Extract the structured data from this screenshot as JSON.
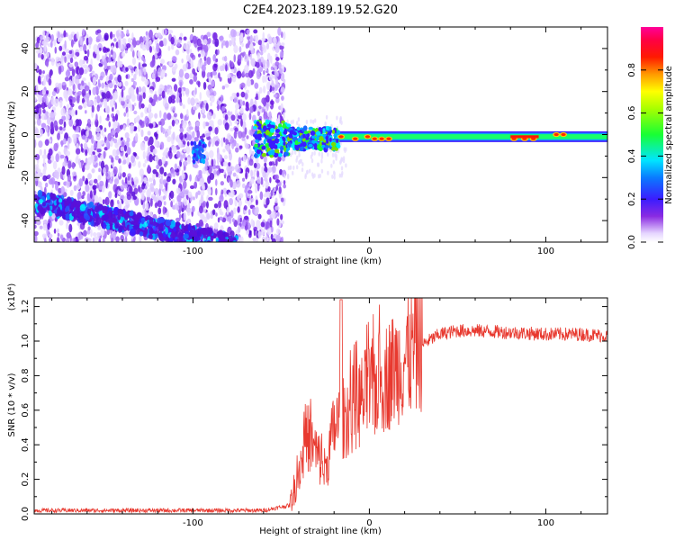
{
  "title": "C2E4.2023.189.19.52.G20",
  "chart_data": [
    {
      "type": "heatmap",
      "xlabel": "Height of straight line (km)",
      "ylabel": "Frequency (Hz)",
      "xlim": [
        -190,
        135
      ],
      "ylim": [
        -50,
        50
      ],
      "x_ticks": [
        -100,
        0,
        100
      ],
      "y_ticks": [
        -40,
        -20,
        0,
        20,
        40
      ],
      "colorbar": {
        "label": "Normalized spectral amplitude",
        "range": [
          0.0,
          1.0
        ],
        "ticks": [
          "0.0",
          "0.2",
          "0.4",
          "0.6",
          "0.8"
        ],
        "colormap": "rainbow (white/purple → blue → cyan → green → yellow → red → magenta)"
      },
      "features": [
        {
          "name": "scattered noise",
          "x_range": [
            -190,
            -48
          ],
          "y_range": [
            -50,
            48
          ]
        },
        {
          "name": "lower band",
          "from": [
            -190,
            -31
          ],
          "to": [
            -75,
            -52
          ]
        },
        {
          "name": "narrow tone near 0 Hz",
          "x_range": [
            -65,
            135
          ],
          "y_center": -1,
          "peak_x": [
            0,
            95
          ]
        }
      ]
    },
    {
      "type": "line",
      "xlabel": "Height of straight line (km)",
      "ylabel": "SNR (10 * v/v)",
      "y_multiplier": "(x10⁴)",
      "xlim": [
        -190,
        135
      ],
      "ylim": [
        0.0,
        1.25
      ],
      "x_ticks": [
        -100,
        0,
        100
      ],
      "y_ticks": [
        "0.0",
        "0.2",
        "0.4",
        "0.6",
        "0.8",
        "1.0",
        "1.2"
      ],
      "color": "#e8392f",
      "envelope": {
        "x": [
          -190,
          -60,
          -45,
          -40,
          -35,
          -30,
          -25,
          -20,
          -15,
          -10,
          -5,
          0,
          10,
          20,
          30,
          40,
          50,
          60,
          80,
          100,
          120,
          135
        ],
        "y": [
          0.02,
          0.02,
          0.05,
          0.25,
          0.45,
          0.35,
          0.25,
          0.5,
          0.55,
          0.6,
          0.65,
          0.7,
          0.8,
          0.9,
          0.98,
          1.04,
          1.06,
          1.06,
          1.05,
          1.04,
          1.04,
          1.03
        ]
      }
    }
  ]
}
